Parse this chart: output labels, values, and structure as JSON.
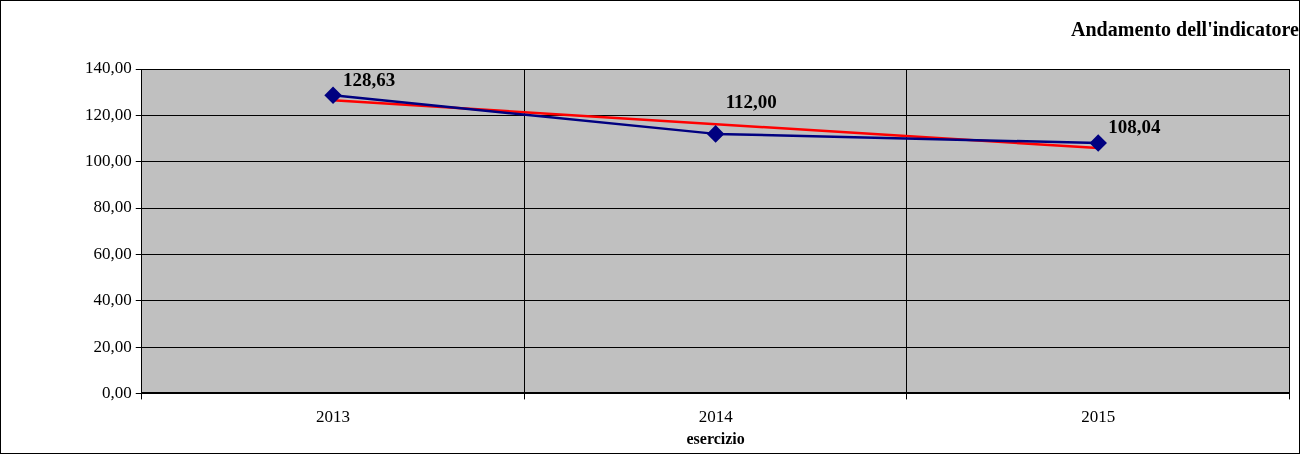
{
  "chart_data": {
    "type": "line",
    "title": "Andamento dell'indicatore",
    "xlabel": "esercizio",
    "categories": [
      "2013",
      "2014",
      "2015"
    ],
    "series": [
      {
        "color": "#000080",
        "values": [
          128.63,
          112.0,
          108.04
        ],
        "marker": "diamond",
        "value_labels": [
          "128,63",
          "112,00",
          "108,04"
        ]
      },
      {
        "type": "line",
        "color": "#ff0000",
        "values": [
          126.5,
          null,
          105.9
        ],
        "marker": "none"
      }
    ],
    "ylim": [
      0,
      140
    ],
    "yticks": [
      {
        "value": 0,
        "label": "0,00"
      },
      {
        "value": 20,
        "label": "20,00"
      },
      {
        "value": 40,
        "label": "40,00"
      },
      {
        "value": 60,
        "label": "60,00"
      },
      {
        "value": 80,
        "label": "80,00"
      },
      {
        "value": 100,
        "label": "100,00"
      },
      {
        "value": 120,
        "label": "120,00"
      },
      {
        "value": 140,
        "label": "140,00"
      }
    ],
    "grid": true,
    "legend": false
  }
}
